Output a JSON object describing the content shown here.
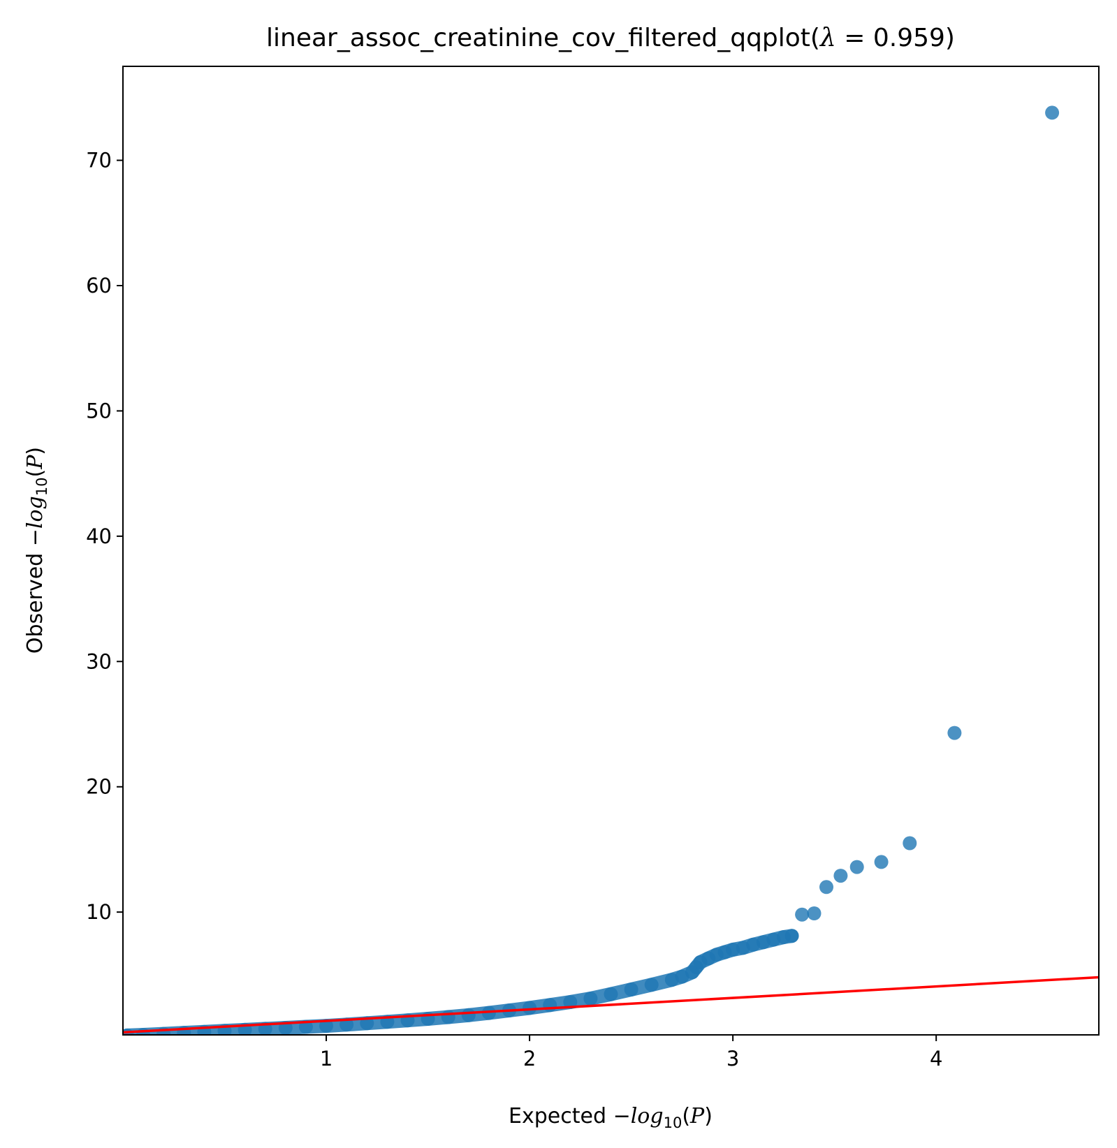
{
  "chart_data": {
    "type": "scatter",
    "title": {
      "prefix": "linear_assoc_creatinine_cov_filtered_qqplot(",
      "lambda_symbol": "λ",
      "equals": " = ",
      "lambda_value": "0.959",
      "suffix": ")"
    },
    "xlabel": {
      "prefix": "Expected ",
      "minus": "−",
      "log": "log",
      "subscript": "10",
      "paren_open": "(",
      "var": "P",
      "paren_close": ")"
    },
    "ylabel": {
      "prefix": "Observed ",
      "minus": "−",
      "log": "log",
      "subscript": "10",
      "paren_open": "(",
      "var": "P",
      "paren_close": ")"
    },
    "xlim": [
      0,
      4.8
    ],
    "ylim": [
      0.2,
      77.5
    ],
    "xticks": [
      {
        "value": 1,
        "label": "1"
      },
      {
        "value": 2,
        "label": "2"
      },
      {
        "value": 3,
        "label": "3"
      },
      {
        "value": 4,
        "label": "4"
      }
    ],
    "yticks": [
      {
        "value": 10,
        "label": "10"
      },
      {
        "value": 20,
        "label": "20"
      },
      {
        "value": 30,
        "label": "30"
      },
      {
        "value": 40,
        "label": "40"
      },
      {
        "value": 50,
        "label": "50"
      },
      {
        "value": 60,
        "label": "60"
      },
      {
        "value": 70,
        "label": "70"
      }
    ],
    "grid": false,
    "colors": {
      "points": "#1f77b4",
      "reference_line": "#ff0000"
    },
    "reference_line": {
      "x": [
        0,
        4.8
      ],
      "y": [
        0.4,
        4.8
      ]
    },
    "series": [
      {
        "values": [
          {
            "x": 0.02,
            "y": 0.15
          },
          {
            "x": 0.1,
            "y": 0.2
          },
          {
            "x": 0.2,
            "y": 0.28
          },
          {
            "x": 0.3,
            "y": 0.36
          },
          {
            "x": 0.4,
            "y": 0.44
          },
          {
            "x": 0.5,
            "y": 0.52
          },
          {
            "x": 0.6,
            "y": 0.6
          },
          {
            "x": 0.7,
            "y": 0.68
          },
          {
            "x": 0.8,
            "y": 0.76
          },
          {
            "x": 0.9,
            "y": 0.84
          },
          {
            "x": 1.0,
            "y": 0.92
          },
          {
            "x": 1.1,
            "y": 1.02
          },
          {
            "x": 1.2,
            "y": 1.13
          },
          {
            "x": 1.3,
            "y": 1.24
          },
          {
            "x": 1.4,
            "y": 1.36
          },
          {
            "x": 1.5,
            "y": 1.48
          },
          {
            "x": 1.6,
            "y": 1.62
          },
          {
            "x": 1.7,
            "y": 1.77
          },
          {
            "x": 1.8,
            "y": 1.95
          },
          {
            "x": 1.9,
            "y": 2.15
          },
          {
            "x": 2.0,
            "y": 2.35
          },
          {
            "x": 2.1,
            "y": 2.58
          },
          {
            "x": 2.2,
            "y": 2.82
          },
          {
            "x": 2.3,
            "y": 3.1
          },
          {
            "x": 2.4,
            "y": 3.45
          },
          {
            "x": 2.5,
            "y": 3.82
          },
          {
            "x": 2.6,
            "y": 4.2
          },
          {
            "x": 2.7,
            "y": 4.6
          },
          {
            "x": 2.75,
            "y": 4.85
          },
          {
            "x": 2.8,
            "y": 5.2
          },
          {
            "x": 2.82,
            "y": 5.6
          },
          {
            "x": 2.84,
            "y": 6.0
          },
          {
            "x": 2.88,
            "y": 6.3
          },
          {
            "x": 2.92,
            "y": 6.6
          },
          {
            "x": 2.96,
            "y": 6.8
          },
          {
            "x": 3.0,
            "y": 7.0
          },
          {
            "x": 3.05,
            "y": 7.15
          },
          {
            "x": 3.1,
            "y": 7.4
          },
          {
            "x": 3.15,
            "y": 7.6
          },
          {
            "x": 3.2,
            "y": 7.8
          },
          {
            "x": 3.25,
            "y": 8.0
          },
          {
            "x": 3.29,
            "y": 8.1
          },
          {
            "x": 3.34,
            "y": 9.8
          },
          {
            "x": 3.4,
            "y": 9.9
          },
          {
            "x": 3.46,
            "y": 12.0
          },
          {
            "x": 3.53,
            "y": 12.9
          },
          {
            "x": 3.61,
            "y": 13.6
          },
          {
            "x": 3.73,
            "y": 14.0
          },
          {
            "x": 3.87,
            "y": 15.5
          },
          {
            "x": 4.09,
            "y": 24.3
          },
          {
            "x": 4.57,
            "y": 73.8
          }
        ]
      }
    ]
  }
}
